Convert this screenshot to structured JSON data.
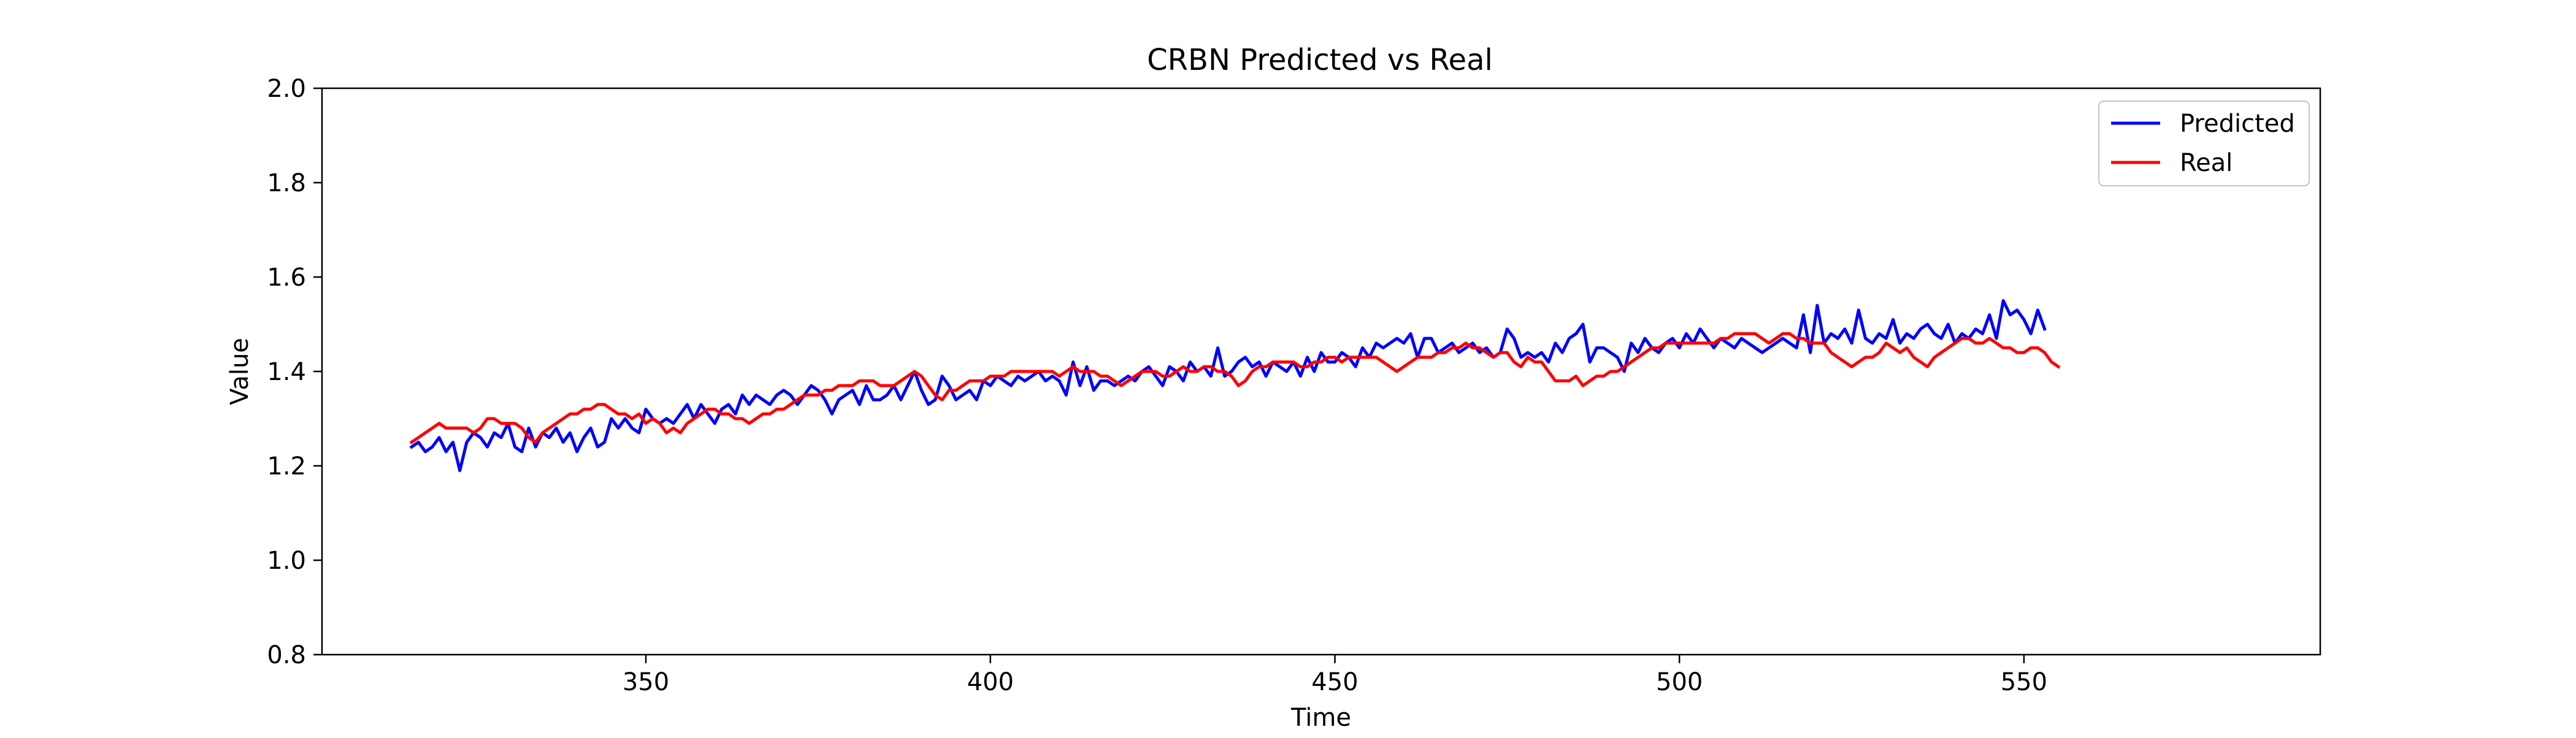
{
  "chart_data": {
    "type": "line",
    "title": "CRBN Predicted vs Real",
    "xlabel": "Time",
    "ylabel": "Value",
    "xlim": [
      303,
      593
    ],
    "ylim": [
      0.8,
      2.0
    ],
    "xticks": [
      350,
      400,
      450,
      500,
      550
    ],
    "yticks": [
      0.8,
      1.0,
      1.2,
      1.4,
      1.6,
      1.8,
      2.0
    ],
    "grid": false,
    "legend_position": "top-right",
    "series": [
      {
        "name": "Predicted",
        "color": "#0000ff",
        "x_start": 316,
        "x_step": 1,
        "values": [
          1.24,
          1.25,
          1.23,
          1.24,
          1.26,
          1.23,
          1.25,
          1.19,
          1.25,
          1.27,
          1.26,
          1.24,
          1.27,
          1.26,
          1.29,
          1.24,
          1.23,
          1.28,
          1.24,
          1.27,
          1.26,
          1.28,
          1.25,
          1.27,
          1.23,
          1.26,
          1.28,
          1.24,
          1.25,
          1.3,
          1.28,
          1.3,
          1.28,
          1.27,
          1.32,
          1.3,
          1.29,
          1.3,
          1.29,
          1.31,
          1.33,
          1.3,
          1.33,
          1.31,
          1.29,
          1.32,
          1.33,
          1.31,
          1.35,
          1.33,
          1.35,
          1.34,
          1.33,
          1.35,
          1.36,
          1.35,
          1.33,
          1.35,
          1.37,
          1.36,
          1.34,
          1.31,
          1.34,
          1.35,
          1.36,
          1.33,
          1.37,
          1.34,
          1.34,
          1.35,
          1.37,
          1.34,
          1.37,
          1.4,
          1.36,
          1.33,
          1.34,
          1.39,
          1.37,
          1.34,
          1.35,
          1.36,
          1.34,
          1.38,
          1.37,
          1.39,
          1.38,
          1.37,
          1.39,
          1.38,
          1.39,
          1.4,
          1.38,
          1.39,
          1.38,
          1.35,
          1.42,
          1.37,
          1.41,
          1.36,
          1.38,
          1.38,
          1.37,
          1.38,
          1.39,
          1.38,
          1.4,
          1.41,
          1.39,
          1.37,
          1.41,
          1.4,
          1.38,
          1.42,
          1.4,
          1.41,
          1.39,
          1.45,
          1.39,
          1.4,
          1.42,
          1.43,
          1.41,
          1.42,
          1.39,
          1.42,
          1.41,
          1.4,
          1.42,
          1.39,
          1.43,
          1.4,
          1.44,
          1.42,
          1.42,
          1.44,
          1.43,
          1.41,
          1.45,
          1.43,
          1.46,
          1.45,
          1.46,
          1.47,
          1.46,
          1.48,
          1.43,
          1.47,
          1.47,
          1.44,
          1.45,
          1.46,
          1.44,
          1.45,
          1.46,
          1.44,
          1.45,
          1.43,
          1.44,
          1.49,
          1.47,
          1.43,
          1.44,
          1.43,
          1.44,
          1.42,
          1.46,
          1.44,
          1.47,
          1.48,
          1.5,
          1.42,
          1.45,
          1.45,
          1.44,
          1.43,
          1.4,
          1.46,
          1.44,
          1.47,
          1.45,
          1.44,
          1.46,
          1.47,
          1.45,
          1.48,
          1.46,
          1.49,
          1.47,
          1.45,
          1.47,
          1.46,
          1.45,
          1.47,
          1.46,
          1.45,
          1.44,
          1.45,
          1.46,
          1.47,
          1.46,
          1.45,
          1.52,
          1.44,
          1.54,
          1.46,
          1.48,
          1.47,
          1.49,
          1.46,
          1.53,
          1.47,
          1.46,
          1.48,
          1.47,
          1.51,
          1.46,
          1.48,
          1.47,
          1.49,
          1.5,
          1.48,
          1.47,
          1.5,
          1.46,
          1.48,
          1.47,
          1.49,
          1.48,
          1.52,
          1.47,
          1.55,
          1.52,
          1.53,
          1.51,
          1.48,
          1.53,
          1.49
        ]
      },
      {
        "name": "Real",
        "color": "#ff0000",
        "x_start": 316,
        "x_step": 1,
        "values": [
          1.25,
          1.26,
          1.27,
          1.28,
          1.29,
          1.28,
          1.28,
          1.28,
          1.28,
          1.27,
          1.28,
          1.3,
          1.3,
          1.29,
          1.29,
          1.29,
          1.28,
          1.26,
          1.25,
          1.27,
          1.28,
          1.29,
          1.3,
          1.31,
          1.31,
          1.32,
          1.32,
          1.33,
          1.33,
          1.32,
          1.31,
          1.31,
          1.3,
          1.31,
          1.29,
          1.3,
          1.29,
          1.27,
          1.28,
          1.27,
          1.29,
          1.3,
          1.31,
          1.32,
          1.32,
          1.31,
          1.31,
          1.3,
          1.3,
          1.29,
          1.3,
          1.31,
          1.31,
          1.32,
          1.32,
          1.33,
          1.34,
          1.35,
          1.35,
          1.35,
          1.36,
          1.36,
          1.37,
          1.37,
          1.37,
          1.38,
          1.38,
          1.38,
          1.37,
          1.37,
          1.37,
          1.38,
          1.39,
          1.4,
          1.39,
          1.37,
          1.35,
          1.34,
          1.36,
          1.36,
          1.37,
          1.38,
          1.38,
          1.38,
          1.39,
          1.39,
          1.39,
          1.4,
          1.4,
          1.4,
          1.4,
          1.4,
          1.4,
          1.4,
          1.39,
          1.4,
          1.41,
          1.4,
          1.4,
          1.4,
          1.39,
          1.39,
          1.38,
          1.37,
          1.38,
          1.39,
          1.4,
          1.4,
          1.4,
          1.39,
          1.39,
          1.4,
          1.41,
          1.4,
          1.4,
          1.41,
          1.41,
          1.4,
          1.4,
          1.39,
          1.37,
          1.38,
          1.4,
          1.41,
          1.41,
          1.42,
          1.42,
          1.42,
          1.42,
          1.41,
          1.41,
          1.42,
          1.42,
          1.43,
          1.43,
          1.42,
          1.43,
          1.43,
          1.43,
          1.43,
          1.43,
          1.42,
          1.41,
          1.4,
          1.41,
          1.42,
          1.43,
          1.43,
          1.43,
          1.44,
          1.44,
          1.45,
          1.45,
          1.46,
          1.45,
          1.45,
          1.44,
          1.43,
          1.44,
          1.44,
          1.42,
          1.41,
          1.43,
          1.42,
          1.42,
          1.4,
          1.38,
          1.38,
          1.38,
          1.39,
          1.37,
          1.38,
          1.39,
          1.39,
          1.4,
          1.4,
          1.41,
          1.42,
          1.43,
          1.44,
          1.45,
          1.45,
          1.46,
          1.46,
          1.46,
          1.46,
          1.46,
          1.46,
          1.46,
          1.46,
          1.47,
          1.47,
          1.48,
          1.48,
          1.48,
          1.48,
          1.47,
          1.46,
          1.47,
          1.48,
          1.48,
          1.47,
          1.47,
          1.46,
          1.46,
          1.46,
          1.44,
          1.43,
          1.42,
          1.41,
          1.42,
          1.43,
          1.43,
          1.44,
          1.46,
          1.45,
          1.44,
          1.45,
          1.43,
          1.42,
          1.41,
          1.43,
          1.44,
          1.45,
          1.46,
          1.47,
          1.47,
          1.46,
          1.46,
          1.47,
          1.46,
          1.45,
          1.45,
          1.44,
          1.44,
          1.45,
          1.45,
          1.44,
          1.42,
          1.41
        ]
      }
    ]
  }
}
